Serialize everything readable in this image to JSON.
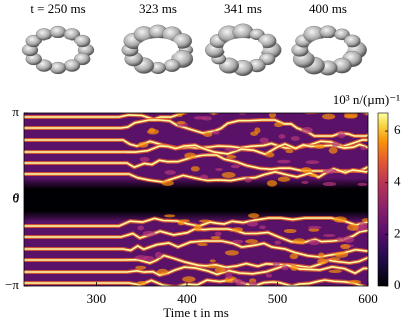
{
  "chart_data": {
    "type": "heatmap",
    "snapshots": [
      "t = 250 ms",
      "323 ms",
      "341 ms",
      "400 ms"
    ],
    "xlabel": "Time t in ms",
    "ylabel": "θ",
    "xlim": [
      220,
      600
    ],
    "xticks": [
      300,
      400,
      500,
      600
    ],
    "ylim": [
      -3.14159,
      3.14159
    ],
    "yticks": [
      {
        "value": -3.14159,
        "label": "−π"
      },
      {
        "value": 0,
        "label": "0"
      },
      {
        "value": 3.14159,
        "label": "π"
      }
    ],
    "colorbar": {
      "label": "10³ n/(µm)⁻¹",
      "lim": [
        0,
        6.7
      ],
      "ticks": [
        0,
        2,
        4,
        6
      ],
      "colormap": "inferno"
    }
  }
}
